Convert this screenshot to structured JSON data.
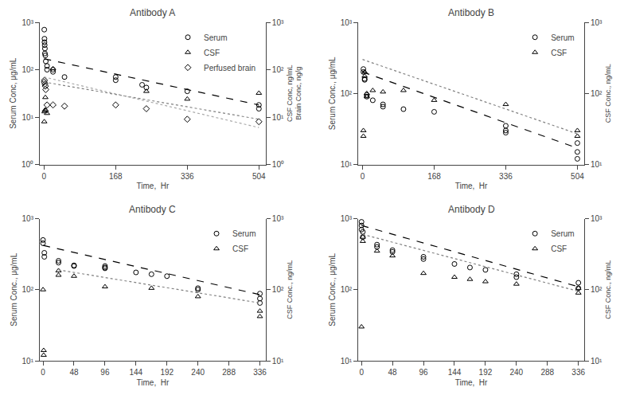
{
  "chart_data": [
    {
      "type": "scatter",
      "title": "Antibody A",
      "xlabel": "Time,  Hr",
      "ylabel": "Serum Conc, μg/mL",
      "y2label": "CSF Conc, ng/mL\nBrain Conc, ng/g",
      "xlim": [
        -10,
        520
      ],
      "xticks": [
        0,
        168,
        336,
        504
      ],
      "ylim": [
        1,
        1000
      ],
      "yticks": [
        {
          "value": 1,
          "label": "10⁰"
        },
        {
          "value": 10,
          "label": "10¹"
        },
        {
          "value": 100,
          "label": "10²"
        },
        {
          "value": 1000,
          "label": "10³"
        }
      ],
      "y2lim": [
        1,
        1000
      ],
      "y2ticks": [
        {
          "value": 1,
          "label": "10⁰"
        },
        {
          "value": 10,
          "label": "10¹"
        },
        {
          "value": 100,
          "label": "10²"
        },
        {
          "value": 1000,
          "label": "10³"
        }
      ],
      "log": "y",
      "grid": false,
      "legend": "upper right",
      "series": [
        {
          "name": "Serum",
          "type": "scatter",
          "marker": "circle-open",
          "color": "black",
          "x": [
            0.5,
            1,
            1,
            1.5,
            2,
            2,
            3,
            4,
            7,
            7,
            21,
            21,
            48,
            168,
            168,
            230,
            240,
            336,
            504,
            504
          ],
          "values": [
            700,
            450,
            380,
            330,
            220,
            280,
            200,
            150,
            100,
            120,
            90,
            100,
            70,
            70,
            60,
            48,
            42,
            35,
            18,
            15
          ]
        },
        {
          "name": "CSF",
          "type": "scatter",
          "axis": "y2",
          "marker": "triangle-up-open",
          "color": "black",
          "x": [
            0.5,
            1,
            2,
            3,
            4,
            7,
            21,
            240,
            336,
            504
          ],
          "values": [
            8,
            13,
            14,
            26,
            14,
            12,
            105,
            35,
            24,
            32
          ]
        },
        {
          "name": "Perfused brain",
          "type": "scatter",
          "axis": "y2",
          "marker": "diamond-open",
          "color": "black",
          "x": [
            0.5,
            1,
            2,
            3,
            4,
            7,
            21,
            48,
            168,
            240,
            336,
            504
          ],
          "values": [
            55,
            60,
            50,
            45,
            38,
            18,
            18,
            17,
            18,
            15,
            9,
            8
          ]
        },
        {
          "type": "line",
          "line_style": "dash",
          "color": "black",
          "x": [
            0,
            504
          ],
          "values": [
            170,
            18
          ]
        },
        {
          "type": "line",
          "axis": "y2",
          "line_style": "dot",
          "color": "gray",
          "x": [
            0,
            504
          ],
          "values": [
            55,
            9
          ]
        },
        {
          "type": "line",
          "axis": "y2",
          "line_style": "dot",
          "color": "darkgray",
          "x": [
            0,
            504
          ],
          "values": [
            70,
            6
          ]
        }
      ]
    },
    {
      "type": "scatter",
      "title": "Antibody B",
      "xlabel": "Time,  Hr",
      "ylabel": "Serum Conc., μg/mL",
      "y2label": "CSF Conc., ng/mL",
      "xlim": [
        -10,
        520
      ],
      "xticks": [
        0,
        168,
        336,
        504
      ],
      "ylim": [
        10,
        1000
      ],
      "yticks": [
        {
          "value": 10,
          "label": "10¹"
        },
        {
          "value": 100,
          "label": "10²"
        },
        {
          "value": 1000,
          "label": "10³"
        }
      ],
      "y2lim": [
        10,
        1000
      ],
      "y2ticks": [
        {
          "value": 10,
          "label": "10¹"
        },
        {
          "value": 100,
          "label": "10²"
        },
        {
          "value": 1000,
          "label": "10³"
        }
      ],
      "log": "y",
      "grid": false,
      "legend": "upper right",
      "series": [
        {
          "name": "Serum",
          "type": "scatter",
          "marker": "circle-open",
          "color": "black",
          "x": [
            2,
            2,
            5,
            5,
            10,
            10,
            24,
            48,
            48,
            96,
            168,
            336,
            336,
            336,
            504,
            504,
            504
          ],
          "values": [
            220,
            200,
            160,
            155,
            95,
            90,
            80,
            70,
            65,
            60,
            55,
            35,
            30,
            28,
            20,
            15,
            12
          ]
        },
        {
          "name": "CSF",
          "type": "scatter",
          "axis": "y2",
          "marker": "triangle-up-open",
          "color": "black",
          "x": [
            2,
            2,
            5,
            5,
            10,
            10,
            24,
            48,
            96,
            168,
            336,
            504,
            504
          ],
          "values": [
            30,
            25,
            200,
            175,
            100,
            90,
            110,
            105,
            110,
            80,
            70,
            30,
            25
          ]
        },
        {
          "type": "line",
          "line_style": "dash",
          "color": "black",
          "x": [
            0,
            504
          ],
          "values": [
            200,
            17
          ]
        },
        {
          "type": "line",
          "axis": "y2",
          "line_style": "dot",
          "color": "gray",
          "x": [
            0,
            504
          ],
          "values": [
            300,
            27
          ]
        }
      ]
    },
    {
      "type": "scatter",
      "title": "Antibody C",
      "xlabel": "Time,  Hr",
      "ylabel": "Serum Conc., μg/mL",
      "y2label": "CSF Conc., ng/mL",
      "xlim": [
        -5,
        345
      ],
      "xticks": [
        0,
        48,
        96,
        144,
        192,
        240,
        288,
        336
      ],
      "ylim": [
        10,
        1000
      ],
      "yticks": [
        {
          "value": 10,
          "label": "10¹"
        },
        {
          "value": 100,
          "label": "10²"
        },
        {
          "value": 1000,
          "label": "10³"
        }
      ],
      "y2lim": [
        10,
        1000
      ],
      "y2ticks": [
        {
          "value": 10,
          "label": "10¹"
        },
        {
          "value": 100,
          "label": "10²"
        },
        {
          "value": 1000,
          "label": "10³"
        }
      ],
      "log": "y",
      "grid": false,
      "legend": "upper right",
      "series": [
        {
          "name": "Serum",
          "type": "scatter",
          "marker": "circle-open",
          "color": "black",
          "x": [
            0,
            0,
            2,
            2,
            24,
            24,
            48,
            48,
            96,
            96,
            96,
            144,
            168,
            192,
            240,
            240,
            336,
            336,
            336
          ],
          "values": [
            500,
            450,
            330,
            290,
            255,
            240,
            220,
            215,
            215,
            205,
            200,
            175,
            165,
            155,
            105,
            100,
            88,
            75,
            65
          ]
        },
        {
          "name": "CSF",
          "type": "scatter",
          "axis": "y2",
          "marker": "triangle-up-open",
          "color": "black",
          "x": [
            0,
            1,
            1,
            24,
            24,
            48,
            96,
            168,
            240,
            336,
            336
          ],
          "values": [
            100,
            12,
            14,
            185,
            160,
            155,
            110,
            105,
            80,
            50,
            42
          ]
        },
        {
          "type": "line",
          "line_style": "dash",
          "color": "black",
          "x": [
            0,
            336
          ],
          "values": [
            420,
            85
          ]
        },
        {
          "type": "line",
          "axis": "y2",
          "line_style": "dot",
          "color": "gray",
          "x": [
            24,
            336
          ],
          "values": [
            190,
            65
          ]
        }
      ]
    },
    {
      "type": "scatter",
      "title": "Antibody D",
      "xlabel": "Time,  Hr",
      "ylabel": "Serum Conc., μg/mL",
      "y2label": "CSF Conc., ng/mL",
      "xlim": [
        -5,
        345
      ],
      "xticks": [
        0,
        48,
        96,
        144,
        192,
        240,
        288,
        336
      ],
      "ylim": [
        10,
        1000
      ],
      "yticks": [
        {
          "value": 10,
          "label": "10¹"
        },
        {
          "value": 100,
          "label": "10²"
        },
        {
          "value": 1000,
          "label": "10³"
        }
      ],
      "y2lim": [
        10,
        1000
      ],
      "y2ticks": [
        {
          "value": 10,
          "label": "10¹"
        },
        {
          "value": 100,
          "label": "10²"
        },
        {
          "value": 1000,
          "label": "10³"
        }
      ],
      "log": "y",
      "grid": false,
      "legend": "upper right",
      "series": [
        {
          "name": "Serum",
          "type": "scatter",
          "marker": "circle-open",
          "color": "black",
          "x": [
            0,
            0,
            0,
            2,
            2,
            24,
            24,
            48,
            48,
            96,
            96,
            144,
            168,
            192,
            240,
            240,
            336,
            336
          ],
          "values": [
            900,
            800,
            700,
            650,
            550,
            430,
            400,
            360,
            340,
            290,
            270,
            230,
            205,
            190,
            165,
            150,
            125,
            105
          ]
        },
        {
          "name": "CSF",
          "type": "scatter",
          "axis": "y2",
          "marker": "triangle-up-open",
          "color": "black",
          "x": [
            0,
            2,
            2,
            24,
            48,
            96,
            144,
            168,
            192,
            240,
            336,
            336
          ],
          "values": [
            30,
            550,
            480,
            350,
            300,
            170,
            150,
            140,
            130,
            120,
            105,
            90
          ]
        },
        {
          "type": "line",
          "line_style": "dash",
          "color": "black",
          "x": [
            0,
            336
          ],
          "values": [
            800,
            110
          ]
        },
        {
          "type": "line",
          "axis": "y2",
          "line_style": "dot",
          "color": "gray",
          "x": [
            2,
            336
          ],
          "values": [
            600,
            95
          ]
        }
      ]
    }
  ]
}
